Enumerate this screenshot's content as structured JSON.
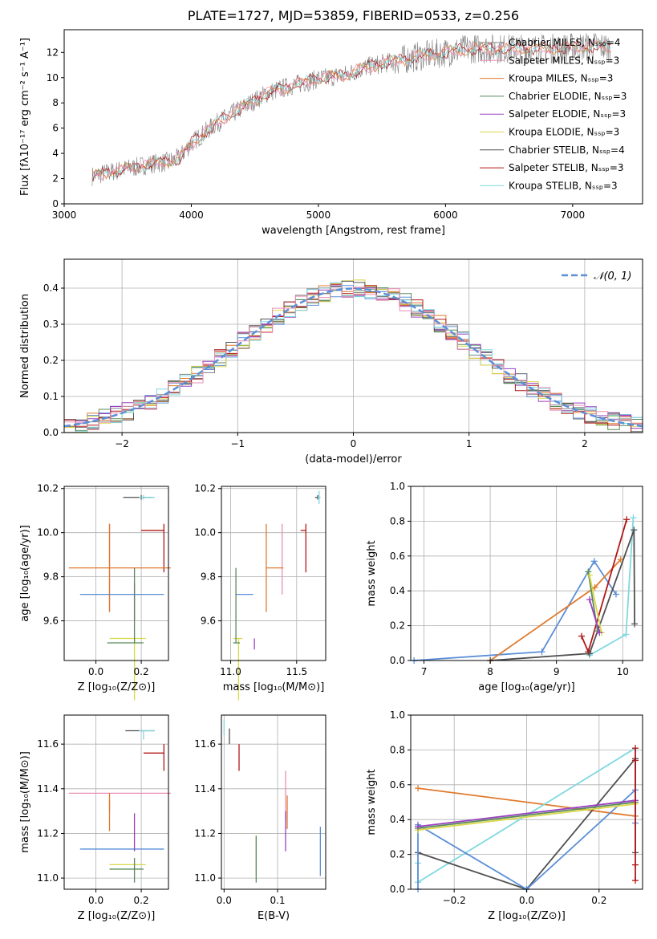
{
  "title": "PLATE=1727, MJD=53859, FIBERID=0533, z=0.256",
  "colors": [
    "#808080",
    "#e98fb6",
    "#e07a2e",
    "#5a8a5a",
    "#9a40c0",
    "#d8d84a",
    "#505050",
    "#b01818",
    "#80d8e0",
    "#5b8fd8"
  ],
  "chart_data": [
    {
      "id": "spectrum",
      "type": "line",
      "title": "PLATE=1727, MJD=53859, FIBERID=0533, z=0.256",
      "xlabel": "wavelength [Angstrom, rest frame]",
      "ylabel": "Flux [fλ10⁻¹⁷ erg cm⁻² s⁻¹ A⁻¹]",
      "xlim": [
        3000,
        7550
      ],
      "ylim": [
        0,
        13.8
      ],
      "xticks": [
        "3000",
        "4000",
        "5000",
        "6000",
        "7000"
      ],
      "yticks": [
        "0",
        "2",
        "4",
        "6",
        "8",
        "10",
        "12"
      ],
      "legend_position": "right",
      "legend": [
        "Chabrier MILES, Nₛₛₚ=4",
        "Salpeter MILES, Nₛₛₚ=3",
        "Kroupa MILES, Nₛₛₚ=3",
        "Chabrier ELODIE, Nₛₛₚ=3",
        "Salpeter ELODIE, Nₛₛₚ=3",
        "Kroupa ELODIE, Nₛₛₚ=3",
        "Chabrier STELIB, Nₛₛₚ=4",
        "Salpeter STELIB, Nₛₛₚ=3",
        "Kroupa STELIB, Nₛₛₚ=3"
      ],
      "legend_colors": [
        "#808080",
        "#e98fb6",
        "#e07a2e",
        "#5a8a5a",
        "#9a40c0",
        "#d8d84a",
        "#505050",
        "#b01818",
        "#80d8e0"
      ],
      "continuum_x": [
        3220,
        3400,
        3560,
        3700,
        3800,
        3900,
        4000,
        4100,
        4200,
        4300,
        4400,
        4500,
        4600,
        4800,
        5000,
        5200,
        5400,
        5600,
        5800,
        6000,
        6200,
        6400,
        6600,
        6800,
        7000,
        7200,
        7300
      ],
      "continuum_y": [
        2.2,
        2.6,
        2.9,
        3.2,
        3.3,
        3.6,
        4.8,
        5.6,
        6.4,
        7.0,
        7.6,
        8.2,
        8.8,
        9.4,
        9.9,
        10.2,
        10.9,
        11.3,
        11.7,
        12.0,
        12.3,
        12.3,
        12.3,
        12.3,
        12.4,
        12.5,
        12.4
      ],
      "grid": false
    },
    {
      "id": "residuals",
      "type": "histogram",
      "xlabel": "(data-model)/error",
      "ylabel": "Normed distribution",
      "xlim": [
        -2.5,
        2.5
      ],
      "ylim": [
        0,
        0.48
      ],
      "xticks": [
        "−2",
        "−1",
        "0",
        "1",
        "2"
      ],
      "yticks": [
        "0.0",
        "0.1",
        "0.2",
        "0.3",
        "0.4"
      ],
      "legend": [
        "𝒩(0, 1)"
      ],
      "legend_position": "top-right",
      "bin_width": 0.1,
      "grid": true
    },
    {
      "id": "age_vs_Z",
      "type": "errorbar",
      "xlabel": "Z [log₁₀(Z/Z⊙)]",
      "ylabel": "age  [log₁₀(age/yr)]",
      "xlim": [
        -0.14,
        0.32
      ],
      "ylim": [
        9.42,
        10.21
      ],
      "xticks": [
        "0.0",
        "0.2"
      ],
      "yticks": [
        "9.6",
        "9.8",
        "10.0",
        "10.2"
      ],
      "points": [
        {
          "x": 0.2,
          "xerr": [
            0.08,
            0.05
          ],
          "y": 10.16,
          "yerr": [
            0.01,
            0.01
          ],
          "c": 6
        },
        {
          "x": 0.21,
          "xerr": [
            0.02,
            0.05
          ],
          "y": 10.16,
          "yerr": [
            0.01,
            0.01
          ],
          "c": 8
        },
        {
          "x": 0.3,
          "xerr": [
            0.1,
            0.0
          ],
          "y": 10.01,
          "yerr": [
            0.19,
            0.03
          ],
          "c": 7
        },
        {
          "x": 0.06,
          "xerr": [
            0.0,
            0.0
          ],
          "y": 9.84,
          "yerr": [
            0.2,
            0.2
          ],
          "c": 1
        },
        {
          "x": 0.06,
          "xerr": [
            0.18,
            0.27
          ],
          "y": 9.84,
          "yerr": [
            0.2,
            0.2
          ],
          "c": 2
        },
        {
          "x": 0.06,
          "xerr": [
            0.13,
            0.24
          ],
          "y": 9.72,
          "yerr": [
            0.0,
            0.0
          ],
          "c": 9
        },
        {
          "x": 0.17,
          "xerr": [
            0.0,
            0.0
          ],
          "y": 9.72,
          "yerr": [
            0.12,
            0.05
          ],
          "c": 4
        },
        {
          "x": 0.17,
          "xerr": [
            0.11,
            0.05
          ],
          "y": 9.52,
          "yerr": [
            0.28,
            0.0
          ],
          "c": 5
        },
        {
          "x": 0.17,
          "xerr": [
            0.12,
            0.04
          ],
          "y": 9.5,
          "yerr": [
            0.0,
            0.34
          ],
          "c": 3
        }
      ],
      "grid": true
    },
    {
      "id": "age_vs_mass",
      "type": "errorbar",
      "xlabel": "mass [log₁₀(M/M⊙)]",
      "ylabel": "",
      "xlim": [
        10.93,
        11.72
      ],
      "ylim": [
        9.42,
        10.21
      ],
      "xticks": [
        "11.0",
        "11.5"
      ],
      "yticks": [
        "9.6",
        "9.8",
        "10.0",
        "10.2"
      ],
      "points": [
        {
          "x": 11.66,
          "xerr": [
            0.02,
            0.02
          ],
          "y": 10.16,
          "yerr": [
            0.01,
            0.01
          ],
          "c": 6
        },
        {
          "x": 11.67,
          "xerr": [
            0.01,
            0.01
          ],
          "y": 10.16,
          "yerr": [
            0.03,
            0.03
          ],
          "c": 8
        },
        {
          "x": 11.57,
          "xerr": [
            0.04,
            0.0
          ],
          "y": 10.01,
          "yerr": [
            0.19,
            0.03
          ],
          "c": 7
        },
        {
          "x": 11.39,
          "xerr": [
            0.0,
            0.0
          ],
          "y": 9.84,
          "yerr": [
            0.12,
            0.2
          ],
          "c": 1
        },
        {
          "x": 11.27,
          "xerr": [
            0.0,
            0.13
          ],
          "y": 9.84,
          "yerr": [
            0.2,
            0.2
          ],
          "c": 2
        },
        {
          "x": 11.13,
          "xerr": [
            0.09,
            0.04
          ],
          "y": 9.72,
          "yerr": [
            0.0,
            0.0
          ],
          "c": 9
        },
        {
          "x": 11.18,
          "xerr": [
            0.0,
            0.0
          ],
          "y": 9.52,
          "yerr": [
            0.05,
            0.0
          ],
          "c": 4
        },
        {
          "x": 11.06,
          "xerr": [
            0.04,
            0.03
          ],
          "y": 9.52,
          "yerr": [
            0.28,
            0.0
          ],
          "c": 5
        },
        {
          "x": 11.04,
          "xerr": [
            0.02,
            0.03
          ],
          "y": 9.5,
          "yerr": [
            0.0,
            0.34
          ],
          "c": 3
        }
      ],
      "grid": true
    },
    {
      "id": "weight_vs_age",
      "type": "line",
      "xlabel": "age  [log₁₀(age/yr)]",
      "ylabel": "mass weight",
      "xlim": [
        6.8,
        10.3
      ],
      "ylim": [
        0,
        1
      ],
      "xticks": [
        "7",
        "8",
        "9",
        "10"
      ],
      "yticks": [
        "0.0",
        "0.2",
        "0.4",
        "0.6",
        "0.8",
        "1.0"
      ],
      "series": [
        {
          "c": 9,
          "x": [
            6.85,
            8.78,
            9.57,
            9.9
          ],
          "y": [
            0.0,
            0.05,
            0.57,
            0.38
          ]
        },
        {
          "c": 2,
          "x": [
            8.0,
            9.58,
            9.97
          ],
          "y": [
            0.0,
            0.42,
            0.58
          ]
        },
        {
          "c": 8,
          "x": [
            9.5,
            10.05,
            10.16
          ],
          "y": [
            0.03,
            0.15,
            0.82
          ]
        },
        {
          "c": 7,
          "x": [
            9.38,
            9.48,
            10.06
          ],
          "y": [
            0.14,
            0.05,
            0.81
          ]
        },
        {
          "c": 6,
          "x": [
            8.0,
            9.5,
            10.17,
            10.18
          ],
          "y": [
            0.0,
            0.04,
            0.75,
            0.21
          ]
        },
        {
          "c": 3,
          "x": [
            9.48,
            9.62
          ],
          "y": [
            0.51,
            0.17
          ]
        },
        {
          "c": 5,
          "x": [
            9.5,
            9.68
          ],
          "y": [
            0.49,
            0.16
          ]
        },
        {
          "c": 4,
          "x": [
            9.5,
            9.65
          ],
          "y": [
            0.35,
            0.16
          ]
        }
      ],
      "grid": true
    },
    {
      "id": "mass_vs_Z",
      "type": "errorbar",
      "xlabel": "Z [log₁₀(Z/Z⊙)]",
      "ylabel": "mass [log₁₀(M/M⊙)]",
      "xlim": [
        -0.14,
        0.32
      ],
      "ylim": [
        10.95,
        11.73
      ],
      "xticks": [
        "0.0",
        "0.2"
      ],
      "yticks": [
        "11.0",
        "11.2",
        "11.4",
        "11.6"
      ],
      "points": [
        {
          "x": 0.21,
          "xerr": [
            0.08,
            0.05
          ],
          "y": 11.66,
          "yerr": [
            0.0,
            0.0
          ],
          "c": 6
        },
        {
          "x": 0.21,
          "xerr": [
            0.02,
            0.05
          ],
          "y": 11.66,
          "yerr": [
            0.04,
            0.0
          ],
          "c": 8
        },
        {
          "x": 0.3,
          "xerr": [
            0.09,
            0.0
          ],
          "y": 11.56,
          "yerr": [
            0.08,
            0.04
          ],
          "c": 7
        },
        {
          "x": 0.06,
          "xerr": [
            0.18,
            0.27
          ],
          "y": 11.38,
          "yerr": [
            0.0,
            0.0
          ],
          "c": 1
        },
        {
          "x": 0.06,
          "xerr": [
            0.0,
            0.0
          ],
          "y": 11.38,
          "yerr": [
            0.08,
            0.0
          ],
          "c": 2
        },
        {
          "x": 0.06,
          "xerr": [
            0.0,
            0.0
          ],
          "y": 11.27,
          "yerr": [
            0.06,
            0.08
          ],
          "c": 2
        },
        {
          "x": 0.06,
          "xerr": [
            0.13,
            0.24
          ],
          "y": 11.13,
          "yerr": [
            0.0,
            0.0
          ],
          "c": 9
        },
        {
          "x": 0.17,
          "xerr": [
            0.0,
            0.0
          ],
          "y": 11.18,
          "yerr": [
            0.06,
            0.11
          ],
          "c": 4
        },
        {
          "x": 0.17,
          "xerr": [
            0.11,
            0.05
          ],
          "y": 11.06,
          "yerr": [
            0.0,
            0.0
          ],
          "c": 5
        },
        {
          "x": 0.17,
          "xerr": [
            0.11,
            0.04
          ],
          "y": 11.04,
          "yerr": [
            0.06,
            0.05
          ],
          "c": 3
        }
      ],
      "grid": true
    },
    {
      "id": "mass_vs_EBV",
      "type": "errorbar",
      "xlabel": "E(B-V)",
      "ylabel": "",
      "xlim": [
        -0.005,
        0.19
      ],
      "ylim": [
        10.95,
        11.73
      ],
      "xticks": [
        "0.0",
        "0.1"
      ],
      "yticks": [
        "11.0",
        "11.2",
        "11.4",
        "11.6"
      ],
      "points": [
        {
          "x": 0.01,
          "xerr": [
            0,
            0
          ],
          "y": 11.65,
          "yerr": [
            0.05,
            0.02
          ],
          "c": 6
        },
        {
          "x": 0.0,
          "xerr": [
            0,
            0
          ],
          "y": 11.68,
          "yerr": [
            0.04,
            0.03
          ],
          "c": 8
        },
        {
          "x": 0.028,
          "xerr": [
            0,
            0
          ],
          "y": 11.56,
          "yerr": [
            0.08,
            0.04
          ],
          "c": 7
        },
        {
          "x": 0.115,
          "xerr": [
            0,
            0
          ],
          "y": 11.38,
          "yerr": [
            0.12,
            0.1
          ],
          "c": 1
        },
        {
          "x": 0.118,
          "xerr": [
            0,
            0
          ],
          "y": 11.27,
          "yerr": [
            0.05,
            0.1
          ],
          "c": 2
        },
        {
          "x": 0.115,
          "xerr": [
            0,
            0
          ],
          "y": 11.18,
          "yerr": [
            0.06,
            0.12
          ],
          "c": 4
        },
        {
          "x": 0.18,
          "xerr": [
            0,
            0
          ],
          "y": 11.13,
          "yerr": [
            0.12,
            0.1
          ],
          "c": 9
        },
        {
          "x": 0.06,
          "xerr": [
            0,
            0
          ],
          "y": 11.06,
          "yerr": [
            0.05,
            0.13
          ],
          "c": 5
        },
        {
          "x": 0.06,
          "xerr": [
            0,
            0
          ],
          "y": 11.04,
          "yerr": [
            0.06,
            0.15
          ],
          "c": 3
        }
      ],
      "grid": true
    },
    {
      "id": "weight_vs_Z",
      "type": "line",
      "xlabel": "Z [log₁₀(Z/Z⊙)]",
      "ylabel": "mass weight",
      "xlim": [
        -0.32,
        0.32
      ],
      "ylim": [
        0,
        1
      ],
      "xticks": [
        "−0.2",
        "0.0",
        "0.2"
      ],
      "yticks": [
        "0.0",
        "0.2",
        "0.4",
        "0.6",
        "0.8",
        "1.0"
      ],
      "series": [
        {
          "c": 2,
          "x": [
            -0.3,
            0.3
          ],
          "y": [
            0.58,
            0.42
          ]
        },
        {
          "c": 8,
          "x": [
            -0.3,
            -0.3,
            0.3
          ],
          "y": [
            0.15,
            0.04,
            0.81
          ]
        },
        {
          "c": 6,
          "x": [
            -0.3,
            0.0,
            0.3,
            0.3
          ],
          "y": [
            0.21,
            0.0,
            0.75,
            0.21
          ]
        },
        {
          "c": 9,
          "x": [
            -0.3,
            -0.3,
            0.0,
            0.3,
            0.3
          ],
          "y": [
            0.0,
            0.37,
            0.0,
            0.57,
            0.38
          ]
        },
        {
          "c": 3,
          "x": [
            -0.3,
            0.3
          ],
          "y": [
            0.35,
            0.5
          ]
        },
        {
          "c": 5,
          "x": [
            -0.3,
            0.3
          ],
          "y": [
            0.34,
            0.49
          ]
        },
        {
          "c": 4,
          "x": [
            -0.3,
            0.3
          ],
          "y": [
            0.36,
            0.51
          ]
        },
        {
          "c": 7,
          "x": [
            0.3,
            0.3,
            0.3,
            0.3
          ],
          "y": [
            0.81,
            0.74,
            0.14,
            0.05
          ]
        }
      ],
      "grid": true
    }
  ]
}
